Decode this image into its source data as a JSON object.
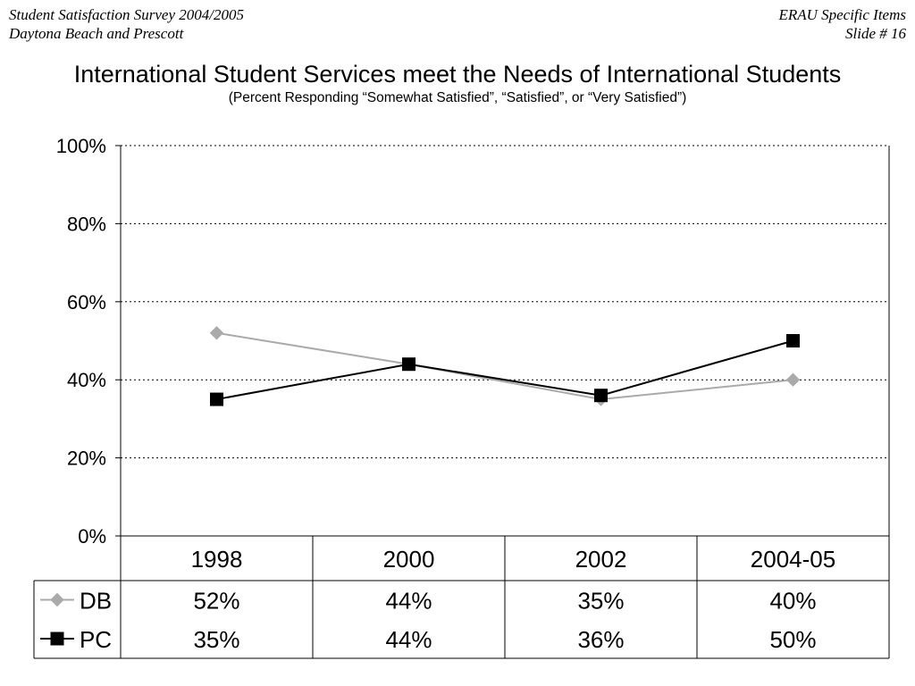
{
  "header": {
    "left_line1": "Student Satisfaction Survey 2004/2005",
    "left_line2": "Daytona Beach and Prescott",
    "right_line1": "ERAU Specific Items",
    "right_line2": "Slide # 16"
  },
  "chart_data": {
    "type": "line",
    "title": "International Student Services meet the Needs of International Students",
    "subtitle": "(Percent Responding “Somewhat Satisfied”, “Satisfied”, or “Very Satisfied”)",
    "categories": [
      "1998",
      "2000",
      "2002",
      "2004-05"
    ],
    "ylim": [
      0,
      100
    ],
    "y_ticks": [
      "0%",
      "20%",
      "40%",
      "60%",
      "80%",
      "100%"
    ],
    "y_tick_values": [
      0,
      20,
      40,
      60,
      80,
      100
    ],
    "grid": true,
    "legend": "data-table",
    "series": [
      {
        "name": "DB",
        "values": [
          52,
          44,
          35,
          40
        ],
        "labels": [
          "52%",
          "44%",
          "35%",
          "40%"
        ],
        "color": "#aaaaaa",
        "marker": "diamond"
      },
      {
        "name": "PC",
        "values": [
          35,
          44,
          36,
          50
        ],
        "labels": [
          "35%",
          "44%",
          "36%",
          "50%"
        ],
        "color": "#000000",
        "marker": "square"
      }
    ]
  }
}
